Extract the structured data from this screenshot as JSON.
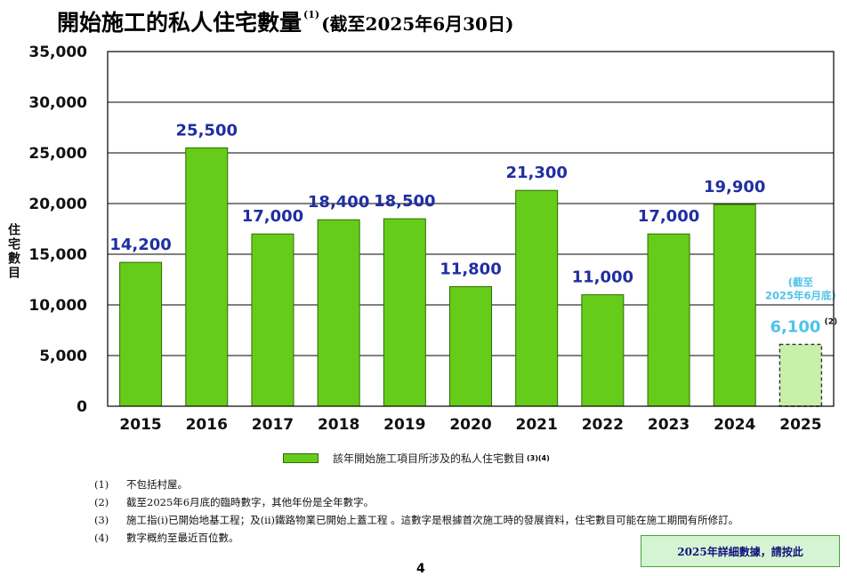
{
  "title": {
    "main": "開始施工的私人住宅數量",
    "sup": "(1)",
    "sub": "(截至2025年6月30日)"
  },
  "chart_data": {
    "type": "bar",
    "ylabel": "住宅數目",
    "ylim": [
      0,
      35000
    ],
    "yticks": [
      0,
      5000,
      10000,
      15000,
      20000,
      25000,
      30000,
      35000
    ],
    "ytick_labels": [
      "0",
      "5,000",
      "10,000",
      "15,000",
      "20,000",
      "25,000",
      "30,000",
      "35,000"
    ],
    "categories": [
      "2015",
      "2016",
      "2017",
      "2018",
      "2019",
      "2020",
      "2021",
      "2022",
      "2023",
      "2024",
      "2025"
    ],
    "values": [
      14200,
      25500,
      17000,
      18400,
      18500,
      11800,
      21300,
      11000,
      17000,
      19900,
      6100
    ],
    "value_labels": [
      "14,200",
      "25,500",
      "17,000",
      "18,400",
      "18,500",
      "11,800",
      "21,300",
      "11,000",
      "17,000",
      "19,900",
      "6,100"
    ],
    "value_label_sup": [
      "",
      "",
      "",
      "",
      "",
      "",
      "",
      "",
      "",
      "",
      "(2)"
    ],
    "provisional_index": 10,
    "provisional_note": [
      "(截至",
      "2025年6月底)"
    ],
    "grid": true,
    "legend": {
      "label": "該年開始施工項目所涉及的私人住宅數目",
      "sup": "(3)(4)",
      "position": "bottom"
    },
    "colors": {
      "bar": "#66cc1a",
      "bar_border": "#2e6b00",
      "provisional_bar": "#c9f0a9",
      "value_label": "#1f2fa0",
      "provisional_label": "#4fc3ea",
      "grid": "#000000"
    }
  },
  "notes": [
    {
      "num": "(1)",
      "text": "不包括村屋。"
    },
    {
      "num": "(2)",
      "text": "截至2025年6月底的臨時數字，其他年份是全年數字。"
    },
    {
      "num": "(3)",
      "text": "施工指(i)已開始地基工程；及(ii)鐵路物業已開始上蓋工程 。這數字是根據首次施工時的發展資料，住宅數目可能在施工期間有所修訂。"
    },
    {
      "num": "(4)",
      "text": "數字概約至最近百位數。"
    }
  ],
  "link_box": {
    "label": "2025年詳細數據，請按此"
  },
  "page_number": "4"
}
